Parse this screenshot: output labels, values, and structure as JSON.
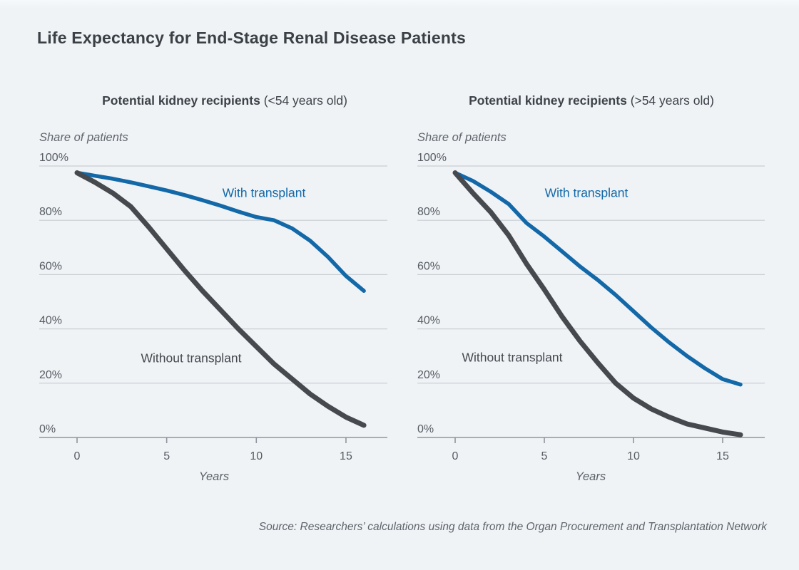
{
  "page": {
    "title": "Life Expectancy for End-Stage Renal Disease Patients",
    "source": "Source: Researchers’ calculations using data from the Organ Procurement and Transplantation Network"
  },
  "colors": {
    "blue": "#1368a8",
    "dark": "#46494e",
    "grid": "#c9ced4",
    "axis": "#8f969d",
    "background": "#eff3f6"
  },
  "chart_data": [
    {
      "type": "line",
      "title": "Potential kidney recipients",
      "title_note": "(<54 years old)",
      "ylabel": "Share of patients",
      "xlabel": "Years",
      "legend_position": "inline-labels",
      "grid": true,
      "xlim": [
        0,
        16
      ],
      "ylim": [
        0,
        100
      ],
      "x_ticks": [
        0,
        5,
        10,
        15
      ],
      "y_tick_labels": [
        "100%",
        "80%",
        "60%",
        "40%",
        "20%",
        "0%"
      ],
      "x": [
        0,
        1,
        2,
        3,
        4,
        5,
        6,
        7,
        8,
        9,
        10,
        11,
        12,
        13,
        14,
        15,
        16
      ],
      "series": [
        {
          "name": "With transplant",
          "color_key": "blue",
          "values": [
            97.5,
            96.4,
            95.3,
            94.0,
            92.5,
            91.0,
            89.3,
            87.4,
            85.4,
            83.2,
            81.2,
            80.0,
            77.0,
            72.5,
            66.5,
            59.5,
            54.0
          ]
        },
        {
          "name": "Without transplant",
          "color_key": "dark",
          "values": [
            97.5,
            94.0,
            90.0,
            85.0,
            77.5,
            69.5,
            61.5,
            54.0,
            47.0,
            40.0,
            33.5,
            27.0,
            21.5,
            16.0,
            11.5,
            7.5,
            4.5
          ]
        }
      ]
    },
    {
      "type": "line",
      "title": "Potential kidney recipients",
      "title_note": "(>54 years old)",
      "ylabel": "Share of patients",
      "xlabel": "Years",
      "legend_position": "inline-labels",
      "grid": true,
      "xlim": [
        0,
        16
      ],
      "ylim": [
        0,
        100
      ],
      "x_ticks": [
        0,
        5,
        10,
        15
      ],
      "y_tick_labels": [
        "100%",
        "80%",
        "60%",
        "40%",
        "20%",
        "0%"
      ],
      "x": [
        0,
        1,
        2,
        3,
        4,
        5,
        6,
        7,
        8,
        9,
        10,
        11,
        12,
        13,
        14,
        15,
        16
      ],
      "series": [
        {
          "name": "With transplant",
          "color_key": "blue",
          "values": [
            97.5,
            94.5,
            90.5,
            86.0,
            79.0,
            74.0,
            68.5,
            63.0,
            58.0,
            52.5,
            46.5,
            40.5,
            35.0,
            30.0,
            25.5,
            21.5,
            19.5
          ]
        },
        {
          "name": "Without transplant",
          "color_key": "dark",
          "values": [
            97.5,
            90.0,
            83.0,
            74.5,
            64.0,
            54.5,
            44.5,
            35.5,
            27.5,
            20.0,
            14.5,
            10.5,
            7.5,
            5.0,
            3.5,
            2.0,
            1.0
          ]
        }
      ]
    }
  ]
}
